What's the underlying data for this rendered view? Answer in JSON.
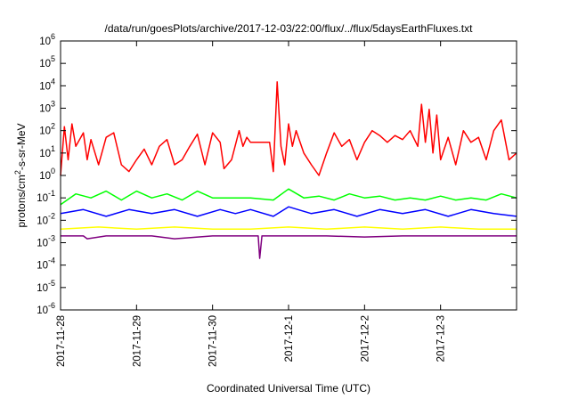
{
  "chart_data": {
    "type": "line",
    "title": "/data/run/goesPlots/archive/2017-12-03/22:00/flux/../flux/5daysEarthFluxes.txt",
    "xlabel": "Coordinated Universal Time (UTC)",
    "ylabel_parts": [
      "protons/cm",
      "2",
      "-s-sr-MeV"
    ],
    "x_ticks": [
      "2017-11-28",
      "2017-11-29",
      "2017-11-30",
      "2017-12-1",
      "2017-12-2",
      "2017-12-3"
    ],
    "y_ticks": [
      {
        "exp": 6,
        "label_base": "10",
        "label_exp": "6"
      },
      {
        "exp": 5,
        "label_base": "10",
        "label_exp": "5"
      },
      {
        "exp": 4,
        "label_base": "10",
        "label_exp": "4"
      },
      {
        "exp": 3,
        "label_base": "10",
        "label_exp": "3"
      },
      {
        "exp": 2,
        "label_base": "10",
        "label_exp": "2"
      },
      {
        "exp": 1,
        "label_base": "10",
        "label_exp": "1"
      },
      {
        "exp": 0,
        "label_base": "10",
        "label_exp": "0"
      },
      {
        "exp": -1,
        "label_base": "10",
        "label_exp": "-1"
      },
      {
        "exp": -2,
        "label_base": "10",
        "label_exp": "-2"
      },
      {
        "exp": -3,
        "label_base": "10",
        "label_exp": "-3"
      },
      {
        "exp": -4,
        "label_base": "10",
        "label_exp": "-4"
      },
      {
        "exp": -5,
        "label_base": "10",
        "label_exp": "-5"
      },
      {
        "exp": -6,
        "label_base": "10",
        "label_exp": "-6"
      }
    ],
    "x_range_days": [
      0,
      6
    ],
    "y_log_range": [
      -6,
      6
    ],
    "y_scale": "log",
    "grid": false,
    "series": [
      {
        "color": "#ff0000",
        "points": [
          [
            0,
            1
          ],
          [
            0.05,
            150
          ],
          [
            0.1,
            5
          ],
          [
            0.15,
            200
          ],
          [
            0.2,
            20
          ],
          [
            0.3,
            80
          ],
          [
            0.35,
            5
          ],
          [
            0.4,
            40
          ],
          [
            0.5,
            3
          ],
          [
            0.6,
            50
          ],
          [
            0.7,
            80
          ],
          [
            0.8,
            3
          ],
          [
            0.9,
            1.5
          ],
          [
            1.0,
            5
          ],
          [
            1.1,
            15
          ],
          [
            1.2,
            3
          ],
          [
            1.3,
            20
          ],
          [
            1.4,
            40
          ],
          [
            1.5,
            3
          ],
          [
            1.6,
            5
          ],
          [
            1.7,
            20
          ],
          [
            1.8,
            70
          ],
          [
            1.9,
            3
          ],
          [
            2.0,
            80
          ],
          [
            2.1,
            30
          ],
          [
            2.15,
            2
          ],
          [
            2.25,
            5
          ],
          [
            2.35,
            100
          ],
          [
            2.4,
            20
          ],
          [
            2.45,
            50
          ],
          [
            2.5,
            30
          ],
          [
            2.6,
            30
          ],
          [
            2.7,
            30
          ],
          [
            2.75,
            30
          ],
          [
            2.8,
            1.5
          ],
          [
            2.85,
            15000
          ],
          [
            2.9,
            20
          ],
          [
            2.95,
            3
          ],
          [
            3.0,
            200
          ],
          [
            3.05,
            20
          ],
          [
            3.1,
            100
          ],
          [
            3.2,
            10
          ],
          [
            3.3,
            3
          ],
          [
            3.4,
            1
          ],
          [
            3.5,
            10
          ],
          [
            3.6,
            80
          ],
          [
            3.7,
            20
          ],
          [
            3.8,
            40
          ],
          [
            3.9,
            5
          ],
          [
            4.0,
            30
          ],
          [
            4.1,
            100
          ],
          [
            4.2,
            60
          ],
          [
            4.3,
            30
          ],
          [
            4.4,
            60
          ],
          [
            4.5,
            40
          ],
          [
            4.6,
            100
          ],
          [
            4.7,
            20
          ],
          [
            4.75,
            1500
          ],
          [
            4.8,
            30
          ],
          [
            4.85,
            900
          ],
          [
            4.9,
            10
          ],
          [
            4.95,
            500
          ],
          [
            5.0,
            5
          ],
          [
            5.1,
            50
          ],
          [
            5.2,
            3
          ],
          [
            5.3,
            100
          ],
          [
            5.4,
            30
          ],
          [
            5.5,
            50
          ],
          [
            5.6,
            5
          ],
          [
            5.7,
            100
          ],
          [
            5.8,
            300
          ],
          [
            5.9,
            5
          ],
          [
            6.0,
            10
          ]
        ]
      },
      {
        "color": "#00ff00",
        "points": [
          [
            0,
            0.05
          ],
          [
            0.2,
            0.15
          ],
          [
            0.4,
            0.1
          ],
          [
            0.6,
            0.2
          ],
          [
            0.8,
            0.08
          ],
          [
            1.0,
            0.2
          ],
          [
            1.2,
            0.1
          ],
          [
            1.4,
            0.15
          ],
          [
            1.6,
            0.08
          ],
          [
            1.8,
            0.2
          ],
          [
            2.0,
            0.1
          ],
          [
            2.2,
            0.1
          ],
          [
            2.5,
            0.1
          ],
          [
            2.8,
            0.08
          ],
          [
            3.0,
            0.25
          ],
          [
            3.2,
            0.1
          ],
          [
            3.4,
            0.12
          ],
          [
            3.6,
            0.08
          ],
          [
            3.8,
            0.15
          ],
          [
            4.0,
            0.1
          ],
          [
            4.2,
            0.12
          ],
          [
            4.4,
            0.08
          ],
          [
            4.6,
            0.1
          ],
          [
            4.8,
            0.08
          ],
          [
            5.0,
            0.12
          ],
          [
            5.2,
            0.08
          ],
          [
            5.4,
            0.1
          ],
          [
            5.6,
            0.08
          ],
          [
            5.8,
            0.15
          ],
          [
            6.0,
            0.1
          ]
        ]
      },
      {
        "color": "#0000ff",
        "points": [
          [
            0,
            0.02
          ],
          [
            0.3,
            0.03
          ],
          [
            0.6,
            0.015
          ],
          [
            0.9,
            0.03
          ],
          [
            1.2,
            0.02
          ],
          [
            1.5,
            0.03
          ],
          [
            1.8,
            0.015
          ],
          [
            2.1,
            0.03
          ],
          [
            2.3,
            0.02
          ],
          [
            2.5,
            0.03
          ],
          [
            2.8,
            0.015
          ],
          [
            3.0,
            0.04
          ],
          [
            3.3,
            0.02
          ],
          [
            3.6,
            0.03
          ],
          [
            3.9,
            0.015
          ],
          [
            4.2,
            0.03
          ],
          [
            4.5,
            0.02
          ],
          [
            4.8,
            0.03
          ],
          [
            5.1,
            0.015
          ],
          [
            5.4,
            0.03
          ],
          [
            5.7,
            0.02
          ],
          [
            6.0,
            0.015
          ]
        ]
      },
      {
        "color": "#ffff00",
        "points": [
          [
            0,
            0.004
          ],
          [
            0.5,
            0.005
          ],
          [
            1.0,
            0.004
          ],
          [
            1.5,
            0.005
          ],
          [
            2.0,
            0.004
          ],
          [
            2.5,
            0.004
          ],
          [
            3.0,
            0.005
          ],
          [
            3.5,
            0.004
          ],
          [
            4.0,
            0.005
          ],
          [
            4.5,
            0.004
          ],
          [
            5.0,
            0.005
          ],
          [
            5.5,
            0.004
          ],
          [
            6.0,
            0.004
          ]
        ]
      },
      {
        "color": "#800080",
        "points": [
          [
            0,
            0.002
          ],
          [
            0.3,
            0.002
          ],
          [
            0.35,
            0.0015
          ],
          [
            0.6,
            0.002
          ],
          [
            1.2,
            0.002
          ],
          [
            1.5,
            0.0015
          ],
          [
            2.0,
            0.002
          ],
          [
            2.6,
            0.002
          ],
          [
            2.62,
            0.0002
          ],
          [
            2.65,
            0.002
          ],
          [
            3.0,
            0.002
          ],
          [
            3.5,
            0.002
          ],
          [
            4.0,
            0.0018
          ],
          [
            4.5,
            0.002
          ],
          [
            5.0,
            0.002
          ],
          [
            5.5,
            0.002
          ],
          [
            6.0,
            0.002
          ]
        ]
      }
    ]
  }
}
